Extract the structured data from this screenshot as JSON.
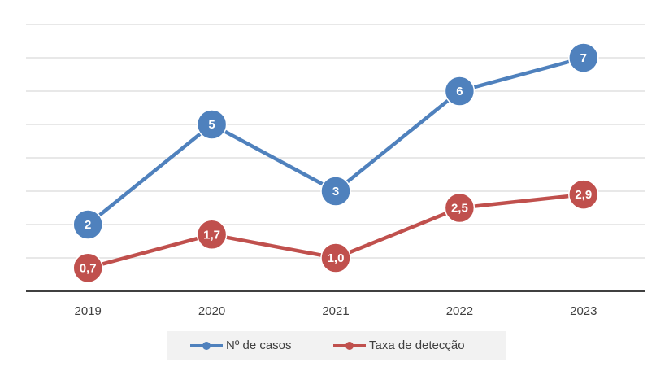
{
  "chart_data": {
    "type": "line",
    "categories": [
      "2019",
      "2020",
      "2021",
      "2022",
      "2023"
    ],
    "series": [
      {
        "name": "Nº de casos",
        "color": "#4f81bd",
        "values": [
          2,
          5,
          3,
          6,
          7
        ]
      },
      {
        "name": "Taxa de detecção",
        "color": "#c0504d",
        "values": [
          0.7,
          1.7,
          1.0,
          2.5,
          2.9
        ],
        "value_labels": [
          "0,7",
          "1,7",
          "1,0",
          "2,5",
          "2,9"
        ]
      }
    ],
    "ylim": [
      0,
      8
    ],
    "yticks": [
      0,
      1,
      2,
      3,
      4,
      5,
      6,
      7,
      8
    ],
    "grid": true,
    "legend": "bottom"
  }
}
